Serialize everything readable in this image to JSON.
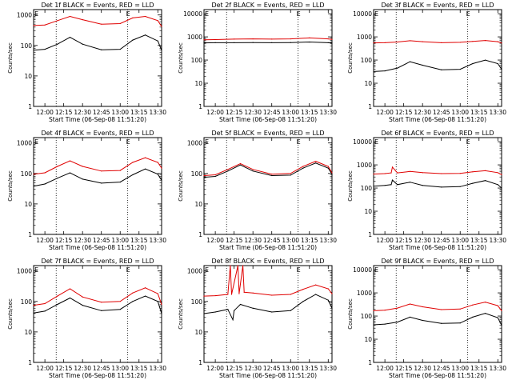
{
  "page": {
    "colors": {
      "events": "#000000",
      "lld": "#e00000",
      "axis": "#000000",
      "background": "#ffffff"
    }
  },
  "chart_data": [
    {
      "type": "line",
      "title": "Det 1f BLACK = Events, RED = LLD",
      "xlabel": "Start Time (06-Sep-08 11:51:20)",
      "ylabel": "Counts/sec",
      "x_ticks": [
        "12:00",
        "12:15",
        "12:30",
        "12:45",
        "13:00",
        "13:15",
        "13:30"
      ],
      "y_ticks": [
        "1",
        "10",
        "100",
        "1000"
      ],
      "xlim": [
        "11:51",
        "13:33"
      ],
      "ylim": [
        1,
        1500
      ],
      "y_scale": "log",
      "markers": [
        "E",
        "E"
      ],
      "series": [
        {
          "color": "#000000",
          "x": [
            "11:51",
            "12:00",
            "12:10",
            "12:20",
            "12:30",
            "12:45",
            "13:00",
            "13:10",
            "13:20",
            "13:30",
            "13:33"
          ],
          "values": [
            70,
            75,
            110,
            185,
            110,
            72,
            75,
            150,
            220,
            140,
            70
          ]
        },
        {
          "color": "#e00000",
          "x": [
            "11:51",
            "12:00",
            "12:10",
            "12:20",
            "12:30",
            "12:45",
            "13:00",
            "13:10",
            "13:20",
            "13:30",
            "13:33"
          ],
          "values": [
            450,
            470,
            650,
            900,
            700,
            500,
            520,
            800,
            900,
            650,
            420
          ]
        }
      ]
    },
    {
      "type": "line",
      "title": "Det 2f BLACK = Events, RED = LLD",
      "xlabel": "Start Time (06-Sep-08 11:51:20)",
      "ylabel": "Counts/sec",
      "x_ticks": [
        "12:00",
        "12:15",
        "12:30",
        "12:45",
        "13:00",
        "13:15",
        "13:30"
      ],
      "y_ticks": [
        "1",
        "10",
        "100",
        "1000",
        "10000"
      ],
      "xlim": [
        "11:51",
        "13:33"
      ],
      "ylim": [
        1,
        15000
      ],
      "y_scale": "log",
      "markers": [
        "E",
        "E"
      ],
      "series": [
        {
          "color": "#000000",
          "x": [
            "11:51",
            "12:00",
            "12:15",
            "12:30",
            "12:45",
            "13:00",
            "13:15",
            "13:30",
            "13:33"
          ],
          "values": [
            550,
            560,
            560,
            570,
            560,
            570,
            600,
            560,
            540
          ]
        },
        {
          "color": "#e00000",
          "x": [
            "11:51",
            "12:00",
            "12:15",
            "12:30",
            "12:45",
            "13:00",
            "13:15",
            "13:30",
            "13:33"
          ],
          "values": [
            750,
            760,
            800,
            820,
            800,
            820,
            900,
            820,
            780
          ]
        }
      ]
    },
    {
      "type": "line",
      "title": "Det 3f BLACK = Events, RED = LLD",
      "xlabel": "Start Time (06-Sep-08 11:51:20)",
      "ylabel": "Counts/sec",
      "x_ticks": [
        "12:00",
        "12:15",
        "12:30",
        "12:45",
        "13:00",
        "13:15",
        "13:30"
      ],
      "y_ticks": [
        "1",
        "10",
        "100",
        "1000",
        "10000"
      ],
      "xlim": [
        "11:51",
        "13:33"
      ],
      "ylim": [
        1,
        15000
      ],
      "y_scale": "log",
      "markers": [
        "E",
        "E"
      ],
      "series": [
        {
          "color": "#000000",
          "x": [
            "11:51",
            "12:00",
            "12:10",
            "12:20",
            "12:30",
            "12:45",
            "13:00",
            "13:10",
            "13:20",
            "13:30",
            "13:33"
          ],
          "values": [
            32,
            34,
            45,
            85,
            60,
            38,
            40,
            70,
            100,
            70,
            40
          ]
        },
        {
          "color": "#e00000",
          "x": [
            "11:51",
            "12:00",
            "12:10",
            "12:20",
            "12:30",
            "12:45",
            "13:00",
            "13:10",
            "13:20",
            "13:30",
            "13:33"
          ],
          "values": [
            550,
            560,
            600,
            680,
            620,
            560,
            580,
            640,
            700,
            620,
            540
          ]
        }
      ]
    },
    {
      "type": "line",
      "title": "Det 4f BLACK = Events, RED = LLD",
      "xlabel": "Start Time (06-Sep-08 11:51:20)",
      "ylabel": "Counts/sec",
      "x_ticks": [
        "12:00",
        "12:15",
        "12:30",
        "12:45",
        "13:00",
        "13:15",
        "13:30"
      ],
      "y_ticks": [
        "1",
        "10",
        "100",
        "1000"
      ],
      "xlim": [
        "11:51",
        "13:33"
      ],
      "ylim": [
        1,
        1500
      ],
      "y_scale": "log",
      "markers": [
        "E",
        "E"
      ],
      "series": [
        {
          "color": "#000000",
          "x": [
            "11:51",
            "12:00",
            "12:10",
            "12:20",
            "12:30",
            "12:45",
            "13:00",
            "13:10",
            "13:20",
            "13:30",
            "13:33"
          ],
          "values": [
            38,
            45,
            70,
            105,
            65,
            48,
            52,
            90,
            140,
            95,
            60
          ]
        },
        {
          "color": "#e00000",
          "x": [
            "11:51",
            "12:00",
            "12:10",
            "12:20",
            "12:30",
            "12:45",
            "13:00",
            "13:10",
            "13:20",
            "13:30",
            "13:33"
          ],
          "values": [
            95,
            105,
            170,
            260,
            170,
            120,
            125,
            230,
            330,
            230,
            150
          ]
        }
      ]
    },
    {
      "type": "line",
      "title": "Det 5f BLACK = Events, RED = LLD",
      "xlabel": "Start Time (06-Sep-08 11:51:20)",
      "ylabel": "Counts/sec",
      "x_ticks": [
        "12:00",
        "12:15",
        "12:30",
        "12:45",
        "13:00",
        "13:15",
        "13:30"
      ],
      "y_ticks": [
        "1",
        "10",
        "100",
        "1000"
      ],
      "xlim": [
        "11:51",
        "13:33"
      ],
      "ylim": [
        1,
        1500
      ],
      "y_scale": "log",
      "markers": [
        "E",
        "E"
      ],
      "series": [
        {
          "color": "#000000",
          "x": [
            "11:51",
            "12:00",
            "12:10",
            "12:20",
            "12:30",
            "12:45",
            "13:00",
            "13:10",
            "13:20",
            "13:30",
            "13:33"
          ],
          "values": [
            75,
            80,
            120,
            190,
            120,
            85,
            88,
            150,
            220,
            150,
            95
          ]
        },
        {
          "color": "#e00000",
          "x": [
            "11:51",
            "12:00",
            "12:10",
            "12:20",
            "12:30",
            "12:45",
            "13:00",
            "13:10",
            "13:20",
            "13:30",
            "13:33"
          ],
          "values": [
            85,
            90,
            135,
            210,
            135,
            95,
            100,
            170,
            250,
            170,
            105
          ]
        }
      ]
    },
    {
      "type": "line",
      "title": "Det 6f BLACK = Events, RED = LLD",
      "xlabel": "Start Time (06-Sep-08 11:51:20)",
      "ylabel": "Counts/sec",
      "x_ticks": [
        "12:00",
        "12:15",
        "12:30",
        "12:45",
        "13:00",
        "13:15",
        "13:30"
      ],
      "y_ticks": [
        "1",
        "10",
        "100",
        "1000",
        "10000"
      ],
      "xlim": [
        "11:51",
        "13:33"
      ],
      "ylim": [
        1,
        15000
      ],
      "y_scale": "log",
      "markers": [
        "E",
        "E"
      ],
      "series": [
        {
          "color": "#000000",
          "x": [
            "11:51",
            "12:00",
            "12:05",
            "12:06",
            "12:10",
            "12:20",
            "12:30",
            "12:45",
            "13:00",
            "13:10",
            "13:20",
            "13:30",
            "13:33"
          ],
          "values": [
            120,
            130,
            140,
            220,
            140,
            180,
            130,
            110,
            115,
            160,
            210,
            140,
            100
          ]
        },
        {
          "color": "#e00000",
          "x": [
            "11:51",
            "12:00",
            "12:05",
            "12:06",
            "12:10",
            "12:20",
            "12:30",
            "12:45",
            "13:00",
            "13:10",
            "13:20",
            "13:30",
            "13:33"
          ],
          "values": [
            400,
            420,
            450,
            800,
            450,
            520,
            460,
            420,
            430,
            500,
            560,
            460,
            380
          ]
        }
      ]
    },
    {
      "type": "line",
      "title": "Det 7f BLACK = Events, RED = LLD",
      "xlabel": "Start Time (06-Sep-08 11:51:20)",
      "ylabel": "Counts/sec",
      "x_ticks": [
        "12:00",
        "12:15",
        "12:30",
        "12:45",
        "13:00",
        "13:15",
        "13:30"
      ],
      "y_ticks": [
        "1",
        "10",
        "100",
        "1000"
      ],
      "xlim": [
        "11:51",
        "13:33"
      ],
      "ylim": [
        1,
        1500
      ],
      "y_scale": "log",
      "markers": [
        "E",
        "E"
      ],
      "series": [
        {
          "color": "#000000",
          "x": [
            "11:51",
            "12:00",
            "12:10",
            "12:20",
            "12:30",
            "12:45",
            "13:00",
            "13:10",
            "13:20",
            "13:30",
            "13:33"
          ],
          "values": [
            42,
            48,
            80,
            130,
            75,
            50,
            55,
            100,
            150,
            100,
            40
          ]
        },
        {
          "color": "#e00000",
          "x": [
            "11:51",
            "12:00",
            "12:10",
            "12:20",
            "12:30",
            "12:45",
            "13:00",
            "13:10",
            "13:20",
            "13:30",
            "13:33"
          ],
          "values": [
            75,
            85,
            150,
            260,
            140,
            95,
            100,
            190,
            280,
            180,
            80
          ]
        }
      ]
    },
    {
      "type": "line",
      "title": "Det 8f BLACK = Events, RED = LLD",
      "xlabel": "Start Time (06-Sep-08 11:51:20)",
      "ylabel": "Counts/sec",
      "x_ticks": [
        "12:00",
        "12:15",
        "12:30",
        "12:45",
        "13:00",
        "13:15",
        "13:30"
      ],
      "y_ticks": [
        "1",
        "10",
        "100",
        "1000"
      ],
      "xlim": [
        "11:51",
        "13:33"
      ],
      "ylim": [
        1,
        1500
      ],
      "y_scale": "log",
      "markers": [
        "E",
        "E"
      ],
      "series": [
        {
          "color": "#000000",
          "x": [
            "11:51",
            "12:00",
            "12:10",
            "12:14",
            "12:15",
            "12:20",
            "12:30",
            "12:45",
            "13:00",
            "13:10",
            "13:20",
            "13:30",
            "13:33"
          ],
          "values": [
            40,
            45,
            55,
            25,
            50,
            80,
            60,
            45,
            50,
            100,
            170,
            110,
            60
          ]
        },
        {
          "color": "#e00000",
          "x": [
            "11:51",
            "12:00",
            "12:10",
            "12:12",
            "12:13",
            "12:18",
            "12:19",
            "12:22",
            "12:23",
            "12:30",
            "12:45",
            "13:00",
            "13:10",
            "13:20",
            "13:30",
            "13:33"
          ],
          "values": [
            150,
            155,
            170,
            1500,
            170,
            1500,
            180,
            1500,
            200,
            190,
            160,
            170,
            250,
            350,
            260,
            180
          ]
        }
      ]
    },
    {
      "type": "line",
      "title": "Det 9f BLACK = Events, RED = LLD",
      "xlabel": "Start Time (06-Sep-08 11:51:20)",
      "ylabel": "Counts/sec",
      "x_ticks": [
        "12:00",
        "12:15",
        "12:30",
        "12:45",
        "13:00",
        "13:15",
        "13:30"
      ],
      "y_ticks": [
        "1",
        "10",
        "100",
        "1000",
        "10000"
      ],
      "xlim": [
        "11:51",
        "13:33"
      ],
      "ylim": [
        1,
        15000
      ],
      "y_scale": "log",
      "markers": [
        "E",
        "E"
      ],
      "series": [
        {
          "color": "#000000",
          "x": [
            "11:51",
            "12:00",
            "12:10",
            "12:20",
            "12:30",
            "12:45",
            "13:00",
            "13:10",
            "13:20",
            "13:30",
            "13:33"
          ],
          "values": [
            42,
            45,
            55,
            90,
            65,
            48,
            50,
            90,
            130,
            85,
            40
          ]
        },
        {
          "color": "#e00000",
          "x": [
            "11:51",
            "12:00",
            "12:10",
            "12:20",
            "12:30",
            "12:45",
            "13:00",
            "13:10",
            "13:20",
            "13:30",
            "13:33"
          ],
          "values": [
            170,
            180,
            220,
            330,
            250,
            190,
            200,
            300,
            400,
            280,
            170
          ]
        }
      ]
    }
  ]
}
